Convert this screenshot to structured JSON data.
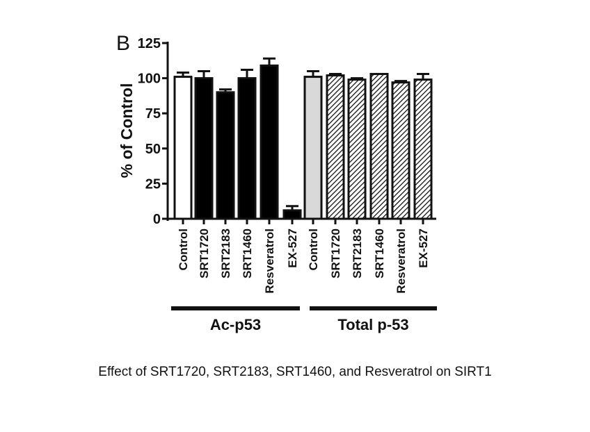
{
  "chart_data": {
    "type": "bar",
    "panel_letter": "B",
    "ylabel": "% of Control",
    "ylim": [
      0,
      125
    ],
    "yticks": [
      0,
      25,
      50,
      75,
      100,
      125
    ],
    "groups": [
      {
        "name": "Ac-p53",
        "fill": "black",
        "bars": [
          {
            "label": "Control",
            "value": 101,
            "error": 3,
            "color": "#ffffff"
          },
          {
            "label": "SRT1720",
            "value": 100,
            "error": 5,
            "color": "#000000"
          },
          {
            "label": "SRT2183",
            "value": 90,
            "error": 2,
            "color": "#000000"
          },
          {
            "label": "SRT1460",
            "value": 100,
            "error": 6,
            "color": "#000000"
          },
          {
            "label": "Resveratrol",
            "value": 109,
            "error": 5,
            "color": "#000000"
          },
          {
            "label": "EX-527",
            "value": 6,
            "error": 3,
            "color": "#000000"
          }
        ]
      },
      {
        "name": "Total p-53",
        "fill": "hatched",
        "bars": [
          {
            "label": "Control",
            "value": 101,
            "error": 4,
            "color": "#d9d9d9"
          },
          {
            "label": "SRT1720",
            "value": 102,
            "error": 1,
            "color": "hatch"
          },
          {
            "label": "SRT2183",
            "value": 99,
            "error": 1,
            "color": "hatch"
          },
          {
            "label": "SRT1460",
            "value": 103,
            "error": 0,
            "color": "hatch"
          },
          {
            "label": "Resveratrol",
            "value": 97,
            "error": 1,
            "color": "hatch"
          },
          {
            "label": "EX-527",
            "value": 99,
            "error": 4,
            "color": "hatch"
          }
        ]
      }
    ]
  },
  "caption": "Effect of SRT1720, SRT2183, SRT1460, and Resveratrol on SIRT1"
}
